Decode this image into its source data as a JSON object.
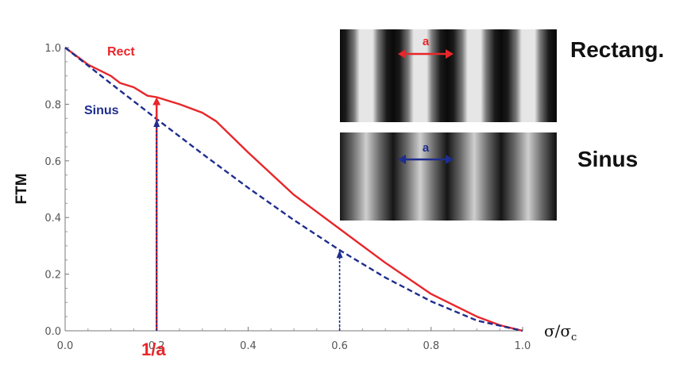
{
  "chart_data": {
    "type": "line",
    "ylabel": "FTM",
    "xlabel": "σ/σ",
    "xlabel_sub": "c",
    "xlim": [
      0,
      1
    ],
    "ylim": [
      0,
      1
    ],
    "x_ticks": [
      "0.0",
      "0.2",
      "0.4",
      "0.6",
      "0.8",
      "1.0"
    ],
    "y_ticks": [
      "0.0",
      "0.2",
      "0.4",
      "0.6",
      "0.8",
      "1.0"
    ],
    "grid": false,
    "series": [
      {
        "name": "Rect",
        "color": "#e8262a",
        "style": "solid",
        "x": [
          0,
          0.05,
          0.1,
          0.12,
          0.15,
          0.18,
          0.2,
          0.25,
          0.3,
          0.33,
          0.4,
          0.5,
          0.6,
          0.7,
          0.8,
          0.9,
          0.95,
          1.0
        ],
        "y": [
          1.0,
          0.94,
          0.9,
          0.875,
          0.86,
          0.83,
          0.825,
          0.8,
          0.77,
          0.74,
          0.63,
          0.48,
          0.36,
          0.24,
          0.13,
          0.05,
          0.02,
          0.0
        ]
      },
      {
        "name": "Sinus",
        "color": "#1e2d8e",
        "style": "dashed",
        "x": [
          0,
          0.1,
          0.2,
          0.3,
          0.4,
          0.5,
          0.6,
          0.7,
          0.8,
          0.9,
          1.0
        ],
        "y": [
          1.0,
          0.873,
          0.748,
          0.625,
          0.505,
          0.391,
          0.285,
          0.188,
          0.104,
          0.036,
          0.0
        ]
      }
    ],
    "markers": [
      {
        "x": 0.2,
        "y": 0.825,
        "color": "#e8262a",
        "style": "solid",
        "label": "1/a"
      },
      {
        "x": 0.2,
        "y": 0.748,
        "color": "#1e2d8e",
        "style": "dotted"
      },
      {
        "x": 0.6,
        "y": 0.285,
        "color": "#1e2d8e",
        "style": "dotted"
      }
    ]
  },
  "insets": [
    {
      "title": "Rectang.",
      "arrow_label": "a",
      "color": "#e8262a",
      "profile": "square"
    },
    {
      "title": "Sinus",
      "arrow_label": "a",
      "color": "#1e2d8e",
      "profile": "sine"
    }
  ]
}
